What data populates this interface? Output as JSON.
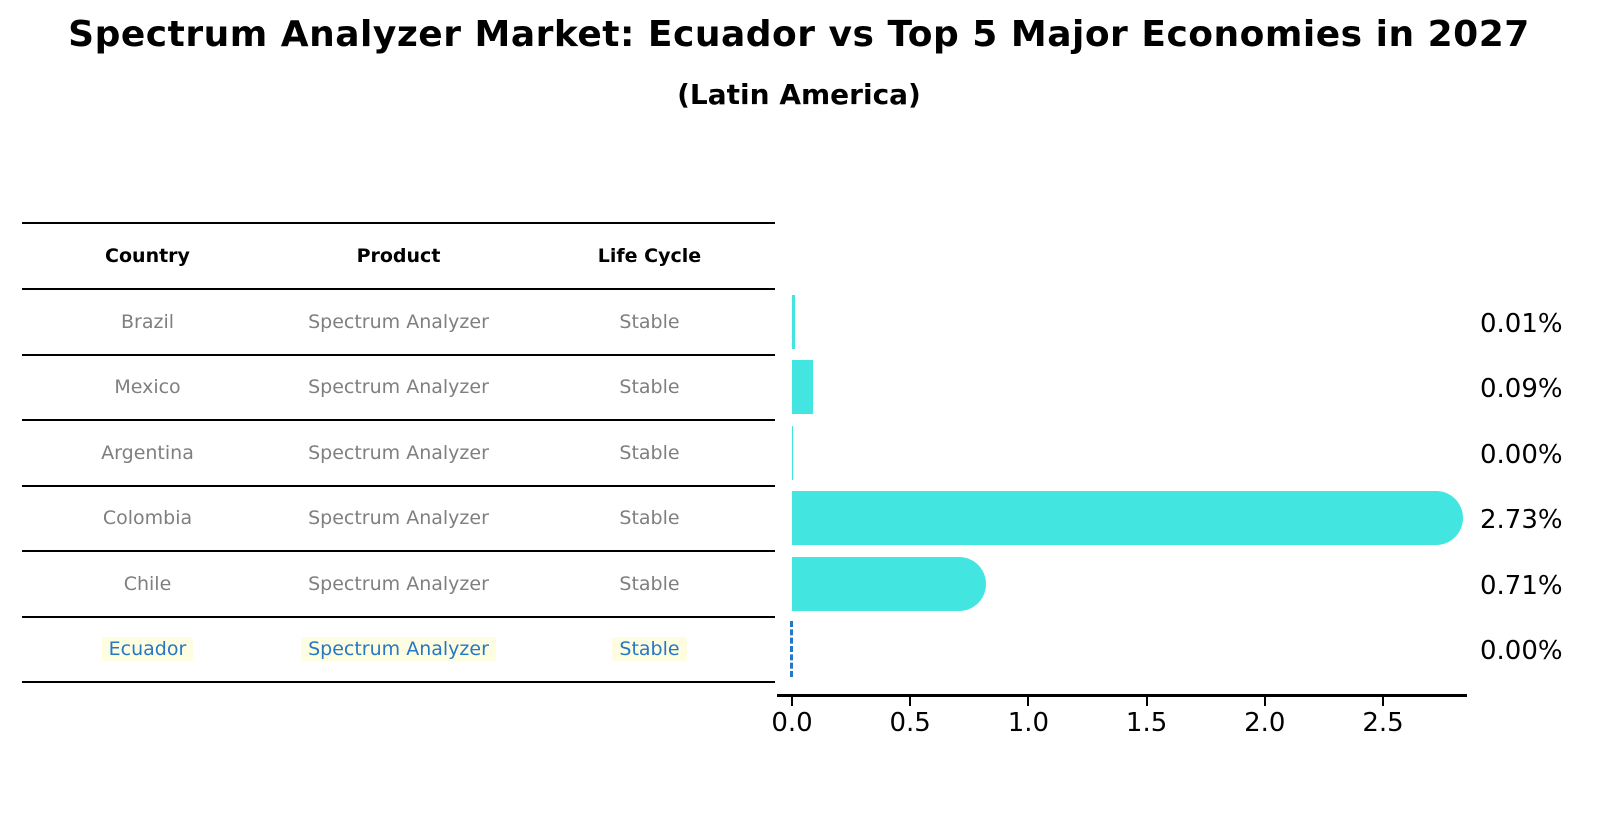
{
  "header": {
    "title": "Spectrum Analyzer Market: Ecuador vs Top 5 Major Economies in 2027",
    "subtitle": "(Latin America)"
  },
  "table": {
    "columns": [
      "Country",
      "Product",
      "Life Cycle"
    ],
    "rows": [
      {
        "country": "Brazil",
        "product": "Spectrum Analyzer",
        "life_cycle": "Stable",
        "highlight": false
      },
      {
        "country": "Mexico",
        "product": "Spectrum Analyzer",
        "life_cycle": "Stable",
        "highlight": false
      },
      {
        "country": "Argentina",
        "product": "Spectrum Analyzer",
        "life_cycle": "Stable",
        "highlight": false
      },
      {
        "country": "Colombia",
        "product": "Spectrum Analyzer",
        "life_cycle": "Stable",
        "highlight": false
      },
      {
        "country": "Chile",
        "product": "Spectrum Analyzer",
        "life_cycle": "Stable",
        "highlight": false
      },
      {
        "country": "Ecuador",
        "product": "Spectrum Analyzer",
        "life_cycle": "Stable",
        "highlight": true
      }
    ]
  },
  "chart_data": {
    "type": "bar",
    "orientation": "horizontal",
    "title": "Spectrum Analyzer Market: Ecuador vs Top 5 Major Economies in 2027",
    "subtitle": "(Latin America)",
    "categories": [
      "Brazil",
      "Mexico",
      "Argentina",
      "Colombia",
      "Chile",
      "Ecuador"
    ],
    "values": [
      0.01,
      0.09,
      0.0,
      2.73,
      0.71,
      0.0
    ],
    "value_labels": [
      "0.01%",
      "0.09%",
      "0.00%",
      "2.73%",
      "0.71%",
      "0.00%"
    ],
    "xlabel": "",
    "ylabel": "",
    "x_tick_labels": [
      "0.0",
      "0.5",
      "1.0",
      "1.5",
      "2.0",
      "2.5"
    ],
    "xlim": [
      0,
      2.86
    ],
    "grid": false,
    "legend": false,
    "bar_color": "#43E5E0",
    "highlight": {
      "index": 5,
      "name": "Ecuador",
      "style": "dashed-zero-line",
      "color": "#2578C5"
    }
  }
}
